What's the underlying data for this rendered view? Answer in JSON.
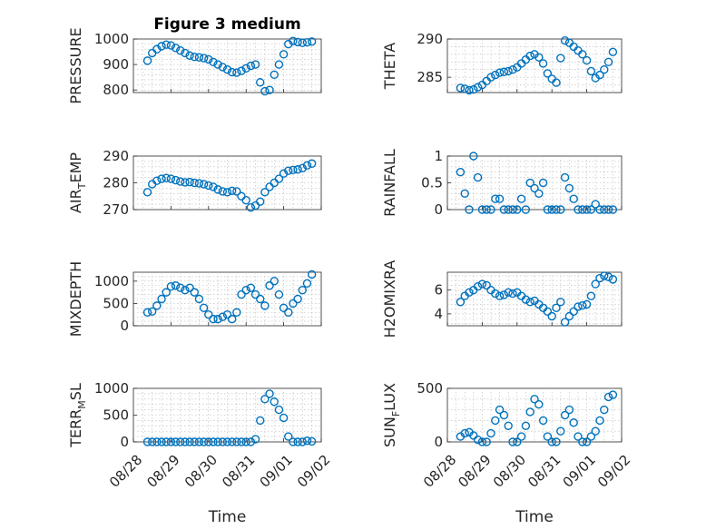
{
  "chart_data": [
    {
      "type": "scatter",
      "title": "Figure 3 medium",
      "ylabel": "PRESSURE",
      "xlim": [
        "08/28",
        "09/02"
      ],
      "ylim": [
        790,
        1000
      ],
      "yticks": [
        800,
        900,
        1000
      ],
      "xticks": [
        "08/28",
        "08/29",
        "08/30",
        "08/31",
        "09/01",
        "09/02"
      ],
      "show_xticklabels": false,
      "xlabel": "",
      "grid": true,
      "x": [
        "08/28 09:00",
        "08/28 12:00",
        "08/28 15:00",
        "08/28 18:00",
        "08/28 21:00",
        "08/29 00:00",
        "08/29 03:00",
        "08/29 06:00",
        "08/29 09:00",
        "08/29 12:00",
        "08/29 15:00",
        "08/29 18:00",
        "08/29 21:00",
        "08/30 00:00",
        "08/30 03:00",
        "08/30 06:00",
        "08/30 09:00",
        "08/30 12:00",
        "08/30 15:00",
        "08/30 18:00",
        "08/30 21:00",
        "08/31 00:00",
        "08/31 03:00",
        "08/31 06:00",
        "08/31 09:00",
        "08/31 12:00",
        "08/31 15:00",
        "08/31 18:00",
        "08/31 21:00",
        "09/01 00:00",
        "09/01 03:00",
        "09/01 06:00",
        "09/01 09:00",
        "09/01 12:00",
        "09/01 15:00",
        "09/01 18:00"
      ],
      "values": [
        915,
        945,
        960,
        972,
        978,
        975,
        965,
        955,
        945,
        935,
        930,
        928,
        925,
        920,
        910,
        900,
        890,
        880,
        870,
        868,
        875,
        885,
        895,
        900,
        830,
        795,
        800,
        860,
        900,
        940,
        980,
        992,
        988,
        985,
        987,
        990
      ]
    },
    {
      "type": "scatter",
      "title": "",
      "ylabel": "THETA",
      "xlim": [
        "08/28",
        "09/02"
      ],
      "ylim": [
        283,
        290
      ],
      "yticks": [
        285,
        290
      ],
      "xticks": [
        "08/28",
        "08/29",
        "08/30",
        "08/31",
        "09/01",
        "09/02"
      ],
      "show_xticklabels": false,
      "xlabel": "",
      "grid": true,
      "x": [
        "08/28 09:00",
        "08/28 12:00",
        "08/28 15:00",
        "08/28 18:00",
        "08/28 21:00",
        "08/29 00:00",
        "08/29 03:00",
        "08/29 06:00",
        "08/29 09:00",
        "08/29 12:00",
        "08/29 15:00",
        "08/29 18:00",
        "08/29 21:00",
        "08/30 00:00",
        "08/30 03:00",
        "08/30 06:00",
        "08/30 09:00",
        "08/30 12:00",
        "08/30 15:00",
        "08/30 18:00",
        "08/30 21:00",
        "08/31 00:00",
        "08/31 03:00",
        "08/31 06:00",
        "08/31 09:00",
        "08/31 12:00",
        "08/31 15:00",
        "08/31 18:00",
        "08/31 21:00",
        "09/01 00:00",
        "09/01 03:00",
        "09/01 06:00",
        "09/01 09:00",
        "09/01 12:00",
        "09/01 15:00",
        "09/01 18:00"
      ],
      "values": [
        283.6,
        283.5,
        283.3,
        283.4,
        283.7,
        284.0,
        284.5,
        285.0,
        285.3,
        285.6,
        285.7,
        285.8,
        286.0,
        286.3,
        286.8,
        287.3,
        287.8,
        288.0,
        287.6,
        286.8,
        285.5,
        284.8,
        284.3,
        287.5,
        289.8,
        289.5,
        289.0,
        288.5,
        288.0,
        287.2,
        285.8,
        284.9,
        285.3,
        286.0,
        287.0,
        288.3
      ]
    },
    {
      "type": "scatter",
      "title": "",
      "ylabel": "AIR_TEMP",
      "xlim": [
        "08/28",
        "09/02"
      ],
      "ylim": [
        270,
        290
      ],
      "yticks": [
        270,
        280,
        290
      ],
      "xticks": [
        "08/28",
        "08/29",
        "08/30",
        "08/31",
        "09/01",
        "09/02"
      ],
      "show_xticklabels": false,
      "xlabel": "",
      "grid": true,
      "x": [
        "08/28 09:00",
        "08/28 12:00",
        "08/28 15:00",
        "08/28 18:00",
        "08/28 21:00",
        "08/29 00:00",
        "08/29 03:00",
        "08/29 06:00",
        "08/29 09:00",
        "08/29 12:00",
        "08/29 15:00",
        "08/29 18:00",
        "08/29 21:00",
        "08/30 00:00",
        "08/30 03:00",
        "08/30 06:00",
        "08/30 09:00",
        "08/30 12:00",
        "08/30 15:00",
        "08/30 18:00",
        "08/30 21:00",
        "08/31 00:00",
        "08/31 03:00",
        "08/31 06:00",
        "08/31 09:00",
        "08/31 12:00",
        "08/31 15:00",
        "08/31 18:00",
        "08/31 21:00",
        "09/01 00:00",
        "09/01 03:00",
        "09/01 06:00",
        "09/01 09:00",
        "09/01 12:00",
        "09/01 15:00",
        "09/01 18:00"
      ],
      "values": [
        276.5,
        279.5,
        280.8,
        281.5,
        281.8,
        281.5,
        281.0,
        280.5,
        280.2,
        280.3,
        280.0,
        279.8,
        279.5,
        279.0,
        278.5,
        277.5,
        276.8,
        276.5,
        277.0,
        276.8,
        275.0,
        273.5,
        270.8,
        271.5,
        273.0,
        276.5,
        278.5,
        280.0,
        281.5,
        283.5,
        284.5,
        284.8,
        285.0,
        285.5,
        286.5,
        287.2
      ]
    },
    {
      "type": "scatter",
      "title": "",
      "ylabel": "RAINFALL",
      "xlim": [
        "08/28",
        "09/02"
      ],
      "ylim": [
        0,
        1
      ],
      "yticks": [
        0,
        0.5,
        1
      ],
      "xticks": [
        "08/28",
        "08/29",
        "08/30",
        "08/31",
        "09/01",
        "09/02"
      ],
      "show_xticklabels": false,
      "xlabel": "",
      "grid": true,
      "x": [
        "08/28 09:00",
        "08/28 12:00",
        "08/28 15:00",
        "08/28 18:00",
        "08/28 21:00",
        "08/29 00:00",
        "08/29 03:00",
        "08/29 06:00",
        "08/29 09:00",
        "08/29 12:00",
        "08/29 15:00",
        "08/29 18:00",
        "08/29 21:00",
        "08/30 00:00",
        "08/30 03:00",
        "08/30 06:00",
        "08/30 09:00",
        "08/30 12:00",
        "08/30 15:00",
        "08/30 18:00",
        "08/30 21:00",
        "08/31 00:00",
        "08/31 03:00",
        "08/31 06:00",
        "08/31 09:00",
        "08/31 12:00",
        "08/31 15:00",
        "08/31 18:00",
        "08/31 21:00",
        "09/01 00:00",
        "09/01 03:00",
        "09/01 06:00",
        "09/01 09:00",
        "09/01 12:00",
        "09/01 15:00",
        "09/01 18:00"
      ],
      "values": [
        0.7,
        0.3,
        0,
        1.0,
        0.6,
        0,
        0,
        0,
        0.2,
        0.2,
        0,
        0,
        0,
        0,
        0.2,
        0,
        0.5,
        0.4,
        0.3,
        0.5,
        0,
        0,
        0,
        0,
        0.6,
        0.4,
        0.2,
        0,
        0,
        0,
        0,
        0.1,
        0,
        0,
        0,
        0
      ]
    },
    {
      "type": "scatter",
      "title": "",
      "ylabel": "MIXDEPTH",
      "xlim": [
        "08/28",
        "09/02"
      ],
      "ylim": [
        0,
        1200
      ],
      "yticks": [
        0,
        500,
        1000
      ],
      "xticks": [
        "08/28",
        "08/29",
        "08/30",
        "08/31",
        "09/01",
        "09/02"
      ],
      "show_xticklabels": false,
      "xlabel": "",
      "grid": true,
      "x": [
        "08/28 09:00",
        "08/28 12:00",
        "08/28 15:00",
        "08/28 18:00",
        "08/28 21:00",
        "08/29 00:00",
        "08/29 03:00",
        "08/29 06:00",
        "08/29 09:00",
        "08/29 12:00",
        "08/29 15:00",
        "08/29 18:00",
        "08/29 21:00",
        "08/30 00:00",
        "08/30 03:00",
        "08/30 06:00",
        "08/30 09:00",
        "08/30 12:00",
        "08/30 15:00",
        "08/30 18:00",
        "08/30 21:00",
        "08/31 00:00",
        "08/31 03:00",
        "08/31 06:00",
        "08/31 09:00",
        "08/31 12:00",
        "08/31 15:00",
        "08/31 18:00",
        "08/31 21:00",
        "09/01 00:00",
        "09/01 03:00",
        "09/01 06:00",
        "09/01 09:00",
        "09/01 12:00",
        "09/01 15:00",
        "09/01 18:00"
      ],
      "values": [
        300,
        320,
        450,
        600,
        750,
        880,
        900,
        850,
        800,
        850,
        750,
        600,
        400,
        250,
        150,
        150,
        200,
        250,
        150,
        300,
        700,
        800,
        850,
        700,
        600,
        450,
        900,
        1000,
        700,
        400,
        300,
        500,
        600,
        800,
        950,
        1150
      ]
    },
    {
      "type": "scatter",
      "title": "",
      "ylabel": "H2OMIXRA",
      "xlim": [
        "08/28",
        "09/02"
      ],
      "ylim": [
        3,
        7.5
      ],
      "yticks": [
        4,
        6
      ],
      "xticks": [
        "08/28",
        "08/29",
        "08/30",
        "08/31",
        "09/01",
        "09/02"
      ],
      "show_xticklabels": false,
      "xlabel": "",
      "grid": true,
      "x": [
        "08/28 09:00",
        "08/28 12:00",
        "08/28 15:00",
        "08/28 18:00",
        "08/28 21:00",
        "08/29 00:00",
        "08/29 03:00",
        "08/29 06:00",
        "08/29 09:00",
        "08/29 12:00",
        "08/29 15:00",
        "08/29 18:00",
        "08/29 21:00",
        "08/30 00:00",
        "08/30 03:00",
        "08/30 06:00",
        "08/30 09:00",
        "08/30 12:00",
        "08/30 15:00",
        "08/30 18:00",
        "08/30 21:00",
        "08/31 00:00",
        "08/31 03:00",
        "08/31 06:00",
        "08/31 09:00",
        "08/31 12:00",
        "08/31 15:00",
        "08/31 18:00",
        "08/31 21:00",
        "09/01 00:00",
        "09/01 03:00",
        "09/01 06:00",
        "09/01 09:00",
        "09/01 12:00",
        "09/01 15:00",
        "09/01 18:00"
      ],
      "values": [
        5.0,
        5.5,
        5.8,
        6.0,
        6.3,
        6.5,
        6.4,
        6.0,
        5.7,
        5.5,
        5.6,
        5.8,
        5.7,
        5.8,
        5.5,
        5.2,
        5.0,
        5.1,
        4.8,
        4.5,
        4.2,
        3.8,
        4.5,
        5.0,
        3.3,
        3.8,
        4.2,
        4.6,
        4.7,
        4.8,
        5.5,
        6.5,
        7.0,
        7.2,
        7.1,
        6.9
      ]
    },
    {
      "type": "scatter",
      "title": "",
      "ylabel": "TERR_MSL",
      "xlim": [
        "08/28",
        "09/02"
      ],
      "ylim": [
        0,
        1000
      ],
      "yticks": [
        0,
        500,
        1000
      ],
      "xticks": [
        "08/28",
        "08/29",
        "08/30",
        "08/31",
        "09/01",
        "09/02"
      ],
      "xticklabels": [
        "08/28",
        "08/29",
        "08/30",
        "08/31",
        "09/01",
        "09/02"
      ],
      "show_xticklabels": true,
      "xlabel": "Time",
      "grid": true,
      "x": [
        "08/28 09:00",
        "08/28 12:00",
        "08/28 15:00",
        "08/28 18:00",
        "08/28 21:00",
        "08/29 00:00",
        "08/29 03:00",
        "08/29 06:00",
        "08/29 09:00",
        "08/29 12:00",
        "08/29 15:00",
        "08/29 18:00",
        "08/29 21:00",
        "08/30 00:00",
        "08/30 03:00",
        "08/30 06:00",
        "08/30 09:00",
        "08/30 12:00",
        "08/30 15:00",
        "08/30 18:00",
        "08/30 21:00",
        "08/31 00:00",
        "08/31 03:00",
        "08/31 06:00",
        "08/31 09:00",
        "08/31 12:00",
        "08/31 15:00",
        "08/31 18:00",
        "08/31 21:00",
        "09/01 00:00",
        "09/01 03:00",
        "09/01 06:00",
        "09/01 09:00",
        "09/01 12:00",
        "09/01 15:00",
        "09/01 18:00"
      ],
      "values": [
        0,
        0,
        0,
        0,
        0,
        0,
        0,
        0,
        0,
        0,
        0,
        0,
        0,
        0,
        0,
        0,
        0,
        0,
        0,
        0,
        0,
        0,
        0,
        50,
        400,
        800,
        900,
        750,
        600,
        450,
        100,
        0,
        0,
        0,
        20,
        10
      ]
    },
    {
      "type": "scatter",
      "title": "",
      "ylabel": "SUN_FLUX",
      "xlim": [
        "08/28",
        "09/02"
      ],
      "ylim": [
        0,
        500
      ],
      "yticks": [
        0,
        500
      ],
      "xticks": [
        "08/28",
        "08/29",
        "08/30",
        "08/31",
        "09/01",
        "09/02"
      ],
      "xticklabels": [
        "08/28",
        "08/29",
        "08/30",
        "08/31",
        "09/01",
        "09/02"
      ],
      "show_xticklabels": true,
      "xlabel": "Time",
      "grid": true,
      "x": [
        "08/28 09:00",
        "08/28 12:00",
        "08/28 15:00",
        "08/28 18:00",
        "08/28 21:00",
        "08/29 00:00",
        "08/29 03:00",
        "08/29 06:00",
        "08/29 09:00",
        "08/29 12:00",
        "08/29 15:00",
        "08/29 18:00",
        "08/29 21:00",
        "08/30 00:00",
        "08/30 03:00",
        "08/30 06:00",
        "08/30 09:00",
        "08/30 12:00",
        "08/30 15:00",
        "08/30 18:00",
        "08/30 21:00",
        "08/31 00:00",
        "08/31 03:00",
        "08/31 06:00",
        "08/31 09:00",
        "08/31 12:00",
        "08/31 15:00",
        "08/31 18:00",
        "08/31 21:00",
        "09/01 00:00",
        "09/01 03:00",
        "09/01 06:00",
        "09/01 09:00",
        "09/01 12:00",
        "09/01 15:00",
        "09/01 18:00"
      ],
      "values": [
        50,
        80,
        90,
        60,
        20,
        0,
        0,
        80,
        200,
        300,
        250,
        150,
        0,
        0,
        50,
        150,
        280,
        400,
        350,
        200,
        50,
        0,
        0,
        100,
        250,
        300,
        180,
        50,
        0,
        0,
        50,
        100,
        200,
        300,
        420,
        440
      ]
    }
  ]
}
